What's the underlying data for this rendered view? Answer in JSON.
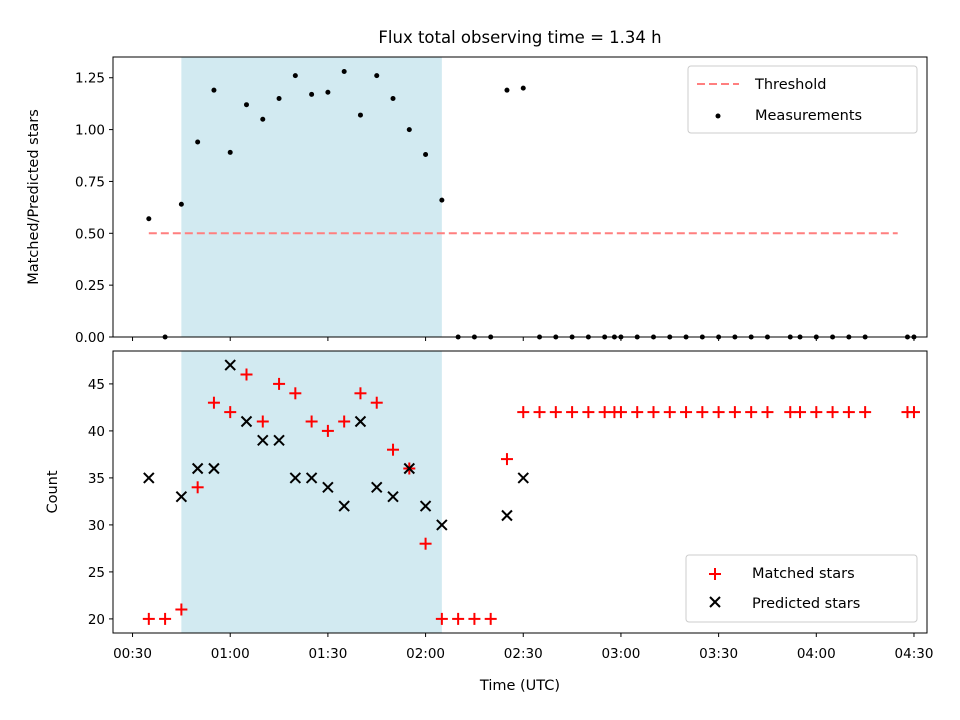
{
  "chart_data": [
    {
      "type": "scatter",
      "title": "Flux total observing time = 1.34 h",
      "xlabel": "",
      "ylabel": "Matched/Predicted stars",
      "xlim": [
        "00:24",
        "04:34"
      ],
      "ylim": [
        0,
        1.35
      ],
      "yticks": [
        0,
        0.25,
        0.5,
        0.75,
        1.0,
        1.25
      ],
      "ytick_labels": [
        "0.00",
        "0.25",
        "0.50",
        "0.75",
        "1.00",
        "1.25"
      ],
      "highlight_span": {
        "from": "00:45",
        "to": "02:05",
        "color": "#add8e6"
      },
      "threshold": {
        "name": "Threshold",
        "value": 0.5,
        "from": "00:35",
        "to": "04:25",
        "color": "#ff7f7f",
        "style": "dashed"
      },
      "legend": {
        "position": "top-right",
        "entries": [
          "Threshold",
          "Measurements"
        ]
      },
      "series": [
        {
          "name": "Measurements",
          "color": "#000000",
          "marker": "dot",
          "points": [
            [
              "00:35",
              0.57
            ],
            [
              "00:40",
              0.0
            ],
            [
              "00:45",
              0.64
            ],
            [
              "00:50",
              0.94
            ],
            [
              "00:55",
              1.19
            ],
            [
              "01:00",
              0.89
            ],
            [
              "01:05",
              1.12
            ],
            [
              "01:10",
              1.05
            ],
            [
              "01:15",
              1.15
            ],
            [
              "01:20",
              1.26
            ],
            [
              "01:25",
              1.17
            ],
            [
              "01:30",
              1.18
            ],
            [
              "01:35",
              1.28
            ],
            [
              "01:40",
              1.07
            ],
            [
              "01:45",
              1.26
            ],
            [
              "01:50",
              1.15
            ],
            [
              "01:55",
              1.0
            ],
            [
              "02:00",
              0.88
            ],
            [
              "02:05",
              0.66
            ],
            [
              "02:10",
              0.0
            ],
            [
              "02:15",
              0.0
            ],
            [
              "02:20",
              0.0
            ],
            [
              "02:25",
              1.19
            ],
            [
              "02:30",
              1.2
            ],
            [
              "02:35",
              0.0
            ],
            [
              "02:40",
              0.0
            ],
            [
              "02:45",
              0.0
            ],
            [
              "02:50",
              0.0
            ],
            [
              "02:55",
              0.0
            ],
            [
              "02:58",
              0.0
            ],
            [
              "03:00",
              0.0
            ],
            [
              "03:05",
              0.0
            ],
            [
              "03:10",
              0.0
            ],
            [
              "03:15",
              0.0
            ],
            [
              "03:20",
              0.0
            ],
            [
              "03:25",
              0.0
            ],
            [
              "03:30",
              0.0
            ],
            [
              "03:35",
              0.0
            ],
            [
              "03:40",
              0.0
            ],
            [
              "03:45",
              0.0
            ],
            [
              "03:52",
              0.0
            ],
            [
              "03:55",
              0.0
            ],
            [
              "04:00",
              0.0
            ],
            [
              "04:05",
              0.0
            ],
            [
              "04:10",
              0.0
            ],
            [
              "04:15",
              0.0
            ],
            [
              "04:28",
              0.0
            ],
            [
              "04:30",
              0.0
            ]
          ]
        }
      ]
    },
    {
      "type": "scatter",
      "title": "",
      "xlabel": "Time (UTC)",
      "ylabel": "Count",
      "xlim": [
        "00:24",
        "04:34"
      ],
      "ylim": [
        18.5,
        48.5
      ],
      "yticks": [
        20,
        25,
        30,
        35,
        40,
        45
      ],
      "ytick_labels": [
        "20",
        "25",
        "30",
        "35",
        "40",
        "45"
      ],
      "xticks": [
        "00:30",
        "01:00",
        "01:30",
        "02:00",
        "02:30",
        "03:00",
        "03:30",
        "04:00",
        "04:30"
      ],
      "xtick_labels": [
        "00:30",
        "01:00",
        "01:30",
        "02:00",
        "02:30",
        "03:00",
        "03:30",
        "04:00",
        "04:30"
      ],
      "highlight_span": {
        "from": "00:45",
        "to": "02:05",
        "color": "#add8e6"
      },
      "legend": {
        "position": "bottom-right",
        "entries": [
          "Matched stars",
          "Predicted stars"
        ]
      },
      "series": [
        {
          "name": "Matched stars",
          "color": "#ff0000",
          "marker": "plus",
          "points": [
            [
              "00:35",
              20
            ],
            [
              "00:40",
              20
            ],
            [
              "00:45",
              21
            ],
            [
              "00:50",
              34
            ],
            [
              "00:55",
              43
            ],
            [
              "01:00",
              42
            ],
            [
              "01:05",
              46
            ],
            [
              "01:10",
              41
            ],
            [
              "01:15",
              45
            ],
            [
              "01:20",
              44
            ],
            [
              "01:25",
              41
            ],
            [
              "01:30",
              40
            ],
            [
              "01:35",
              41
            ],
            [
              "01:40",
              44
            ],
            [
              "01:45",
              43
            ],
            [
              "01:50",
              38
            ],
            [
              "01:55",
              36
            ],
            [
              "02:00",
              28
            ],
            [
              "02:05",
              20
            ],
            [
              "02:10",
              20
            ],
            [
              "02:15",
              20
            ],
            [
              "02:20",
              20
            ],
            [
              "02:25",
              37
            ],
            [
              "02:30",
              42
            ],
            [
              "02:35",
              42
            ],
            [
              "02:40",
              42
            ],
            [
              "02:45",
              42
            ],
            [
              "02:50",
              42
            ],
            [
              "02:55",
              42
            ],
            [
              "02:58",
              42
            ],
            [
              "03:00",
              42
            ],
            [
              "03:05",
              42
            ],
            [
              "03:10",
              42
            ],
            [
              "03:15",
              42
            ],
            [
              "03:20",
              42
            ],
            [
              "03:25",
              42
            ],
            [
              "03:30",
              42
            ],
            [
              "03:35",
              42
            ],
            [
              "03:40",
              42
            ],
            [
              "03:45",
              42
            ],
            [
              "03:52",
              42
            ],
            [
              "03:55",
              42
            ],
            [
              "04:00",
              42
            ],
            [
              "04:05",
              42
            ],
            [
              "04:10",
              42
            ],
            [
              "04:15",
              42
            ],
            [
              "04:28",
              42
            ],
            [
              "04:30",
              42
            ]
          ]
        },
        {
          "name": "Predicted stars",
          "color": "#000000",
          "marker": "x",
          "points": [
            [
              "00:35",
              35
            ],
            [
              "00:45",
              33
            ],
            [
              "00:50",
              36
            ],
            [
              "00:55",
              36
            ],
            [
              "01:00",
              47
            ],
            [
              "01:05",
              41
            ],
            [
              "01:10",
              39
            ],
            [
              "01:15",
              39
            ],
            [
              "01:20",
              35
            ],
            [
              "01:25",
              35
            ],
            [
              "01:30",
              34
            ],
            [
              "01:35",
              32
            ],
            [
              "01:40",
              41
            ],
            [
              "01:45",
              34
            ],
            [
              "01:50",
              33
            ],
            [
              "01:55",
              36
            ],
            [
              "02:00",
              32
            ],
            [
              "02:05",
              30
            ],
            [
              "02:25",
              31
            ],
            [
              "02:30",
              35
            ]
          ]
        }
      ]
    }
  ]
}
